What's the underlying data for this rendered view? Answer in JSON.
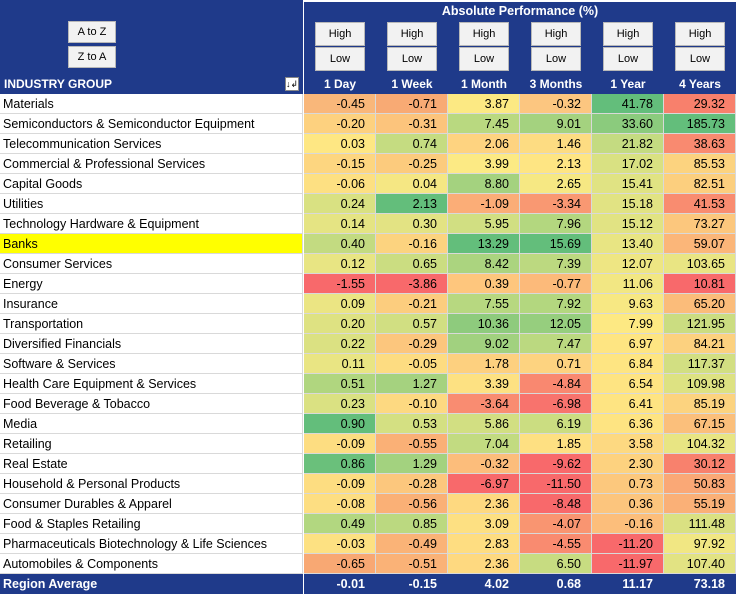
{
  "sort_buttons": {
    "a_to_z": "A to Z",
    "z_to_a": "Z to A"
  },
  "header": {
    "title": "Absolute Performance (%)",
    "high_label": "High",
    "low_label": "Low",
    "industry_group_label": "INDUSTRY GROUP",
    "filter_icon": "sort-filter-icon",
    "columns": [
      "1 Day",
      "1 Week",
      "1 Month",
      "3 Months",
      "1 Year",
      "4 Years"
    ]
  },
  "rows": [
    {
      "name": "Materials",
      "values": [
        "-0.45",
        "-0.71",
        "3.87",
        "-0.32",
        "41.78",
        "29.32"
      ],
      "colors": [
        "#f9b77a",
        "#f8aa74",
        "#fce983",
        "#fcc680",
        "#63be7b",
        "#f8806c"
      ]
    },
    {
      "name": "Semiconductors & Semiconductor Equipment",
      "values": [
        "-0.20",
        "-0.31",
        "7.45",
        "9.01",
        "33.60",
        "185.73"
      ],
      "colors": [
        "#fdd17f",
        "#fcc47c",
        "#b9d980",
        "#a4d27f",
        "#8bcb7d",
        "#63be7b"
      ]
    },
    {
      "name": "Telecommunication Services",
      "values": [
        "0.03",
        "0.74",
        "2.06",
        "1.46",
        "21.82",
        "38.63"
      ],
      "colors": [
        "#fee783",
        "#c5dc81",
        "#fed380",
        "#fddc82",
        "#c4db81",
        "#f98a70"
      ]
    },
    {
      "name": "Commercial & Professional Services",
      "values": [
        "-0.15",
        "-0.25",
        "3.99",
        "2.13",
        "17.02",
        "85.53"
      ],
      "colors": [
        "#fdd680",
        "#fccb7d",
        "#fcea84",
        "#fee583",
        "#d9e182",
        "#fcd37f"
      ]
    },
    {
      "name": "Capital Goods",
      "values": [
        "-0.06",
        "0.04",
        "8.80",
        "2.65",
        "15.41",
        "82.51"
      ],
      "colors": [
        "#fde082",
        "#f5e783",
        "#a4d27f",
        "#f6e883",
        "#e0e383",
        "#fccf7e"
      ]
    },
    {
      "name": "Utilities",
      "values": [
        "0.24",
        "2.13",
        "-1.09",
        "-3.34",
        "15.18",
        "41.53"
      ],
      "colors": [
        "#d9e182",
        "#63be7b",
        "#fbad77",
        "#f99872",
        "#e1e383",
        "#f98c70"
      ]
    },
    {
      "name": "Technology Hardware & Equipment",
      "values": [
        "0.14",
        "0.30",
        "5.95",
        "7.96",
        "15.12",
        "73.27"
      ],
      "colors": [
        "#e5e483",
        "#e3e383",
        "#d1df82",
        "#b3d77f",
        "#e1e383",
        "#fcc77d"
      ]
    },
    {
      "name": "Banks",
      "values": [
        "0.40",
        "-0.16",
        "13.29",
        "15.69",
        "13.40",
        "59.07"
      ],
      "colors": [
        "#c3db81",
        "#fcd37f",
        "#63be7b",
        "#63be7b",
        "#e8e583",
        "#fbb679"
      ],
      "highlight": true
    },
    {
      "name": "Consumer Services",
      "values": [
        "0.12",
        "0.65",
        "8.42",
        "7.39",
        "12.07",
        "103.65"
      ],
      "colors": [
        "#e8e583",
        "#cbdd81",
        "#abd47f",
        "#bcd980",
        "#eee683",
        "#e9e583"
      ]
    },
    {
      "name": "Energy",
      "values": [
        "-1.55",
        "-3.86",
        "0.39",
        "-0.77",
        "11.06",
        "10.81"
      ],
      "colors": [
        "#f8696b",
        "#f8696b",
        "#fec67d",
        "#fcba7a",
        "#f2e783",
        "#f8696b"
      ]
    },
    {
      "name": "Insurance",
      "values": [
        "0.09",
        "-0.21",
        "7.55",
        "7.92",
        "9.63",
        "65.20"
      ],
      "colors": [
        "#ebe583",
        "#fccd7e",
        "#b7d880",
        "#b3d77f",
        "#f7e883",
        "#fbbc7a"
      ]
    },
    {
      "name": "Transportation",
      "values": [
        "0.20",
        "0.57",
        "10.36",
        "12.05",
        "7.99",
        "121.95"
      ],
      "colors": [
        "#dee282",
        "#d1df82",
        "#8ecb7d",
        "#96ce7e",
        "#fde983",
        "#cbdd81"
      ]
    },
    {
      "name": "Diversified Financials",
      "values": [
        "0.22",
        "-0.29",
        "9.02",
        "7.47",
        "6.97",
        "84.21"
      ],
      "colors": [
        "#dbe182",
        "#fcc67d",
        "#a1d17f",
        "#bbd980",
        "#fee582",
        "#fcd17f"
      ]
    },
    {
      "name": "Software & Services",
      "values": [
        "0.11",
        "-0.05",
        "1.78",
        "0.71",
        "6.84",
        "117.37"
      ],
      "colors": [
        "#e9e583",
        "#fddc81",
        "#fdd07f",
        "#fdd380",
        "#fee582",
        "#d2df82"
      ]
    },
    {
      "name": "Health Care Equipment & Services",
      "values": [
        "0.51",
        "1.27",
        "3.39",
        "-4.84",
        "6.54",
        "109.98"
      ],
      "colors": [
        "#b0d67f",
        "#a5d27f",
        "#fde182",
        "#f98870",
        "#fee482",
        "#dde282"
      ]
    },
    {
      "name": "Food Beverage & Tobacco",
      "values": [
        "0.23",
        "-0.10",
        "-3.64",
        "-6.98",
        "6.41",
        "85.19"
      ],
      "colors": [
        "#dae182",
        "#fdd981",
        "#f98c71",
        "#f8736d",
        "#fee482",
        "#fcd37f"
      ]
    },
    {
      "name": "Media",
      "values": [
        "0.90",
        "0.53",
        "5.86",
        "6.19",
        "6.36",
        "67.15"
      ],
      "colors": [
        "#63be7b",
        "#d4e082",
        "#d2df82",
        "#cbdd81",
        "#fee482",
        "#fbbf7b"
      ]
    },
    {
      "name": "Retailing",
      "values": [
        "-0.09",
        "-0.55",
        "7.04",
        "1.85",
        "3.58",
        "104.32"
      ],
      "colors": [
        "#fddd81",
        "#fab076",
        "#c2db81",
        "#fee082",
        "#fdd981",
        "#e8e583"
      ]
    },
    {
      "name": "Real Estate",
      "values": [
        "0.86",
        "1.29",
        "-0.32",
        "-9.62",
        "2.30",
        "30.12"
      ],
      "colors": [
        "#6ac07b",
        "#a3d27f",
        "#fcbd7b",
        "#f8696b",
        "#fdd27f",
        "#f8816d"
      ]
    },
    {
      "name": "Household & Personal Products",
      "values": [
        "-0.09",
        "-0.28",
        "-6.97",
        "-11.50",
        "0.73",
        "50.83"
      ],
      "colors": [
        "#fddd81",
        "#fcc77d",
        "#f8696b",
        "#f8696b",
        "#fcc87d",
        "#faa876"
      ]
    },
    {
      "name": "Consumer Durables & Apparel",
      "values": [
        "-0.08",
        "-0.56",
        "2.36",
        "-8.48",
        "0.36",
        "55.19"
      ],
      "colors": [
        "#fdde82",
        "#fab076",
        "#fed980",
        "#f8696b",
        "#fcc57d",
        "#fab077"
      ]
    },
    {
      "name": "Food & Staples Retailing",
      "values": [
        "0.49",
        "0.85",
        "3.09",
        "-4.07",
        "-0.16",
        "111.48"
      ],
      "colors": [
        "#b2d780",
        "#bbd980",
        "#fde082",
        "#f99571",
        "#fcbe7b",
        "#dae182"
      ]
    },
    {
      "name": "Pharmaceuticals Biotechnology & Life Sciences",
      "values": [
        "-0.03",
        "-0.49",
        "2.83",
        "-4.55",
        "-11.20",
        "97.92"
      ],
      "colors": [
        "#fde182",
        "#fab377",
        "#fedd81",
        "#f98b70",
        "#f8696b",
        "#f1e783"
      ]
    },
    {
      "name": "Automobiles & Components",
      "values": [
        "-0.65",
        "-0.51",
        "2.36",
        "6.50",
        "-11.97",
        "107.40"
      ],
      "colors": [
        "#f8a873",
        "#fab277",
        "#fed980",
        "#c7dc81",
        "#f8696b",
        "#e2e383"
      ]
    }
  ],
  "region_average": {
    "name": "Region Average",
    "values": [
      "-0.01",
      "-0.15",
      "4.02",
      "0.68",
      "11.17",
      "73.18"
    ]
  },
  "highlight_color": "#ffff00",
  "header_color": "#1f3a8a"
}
